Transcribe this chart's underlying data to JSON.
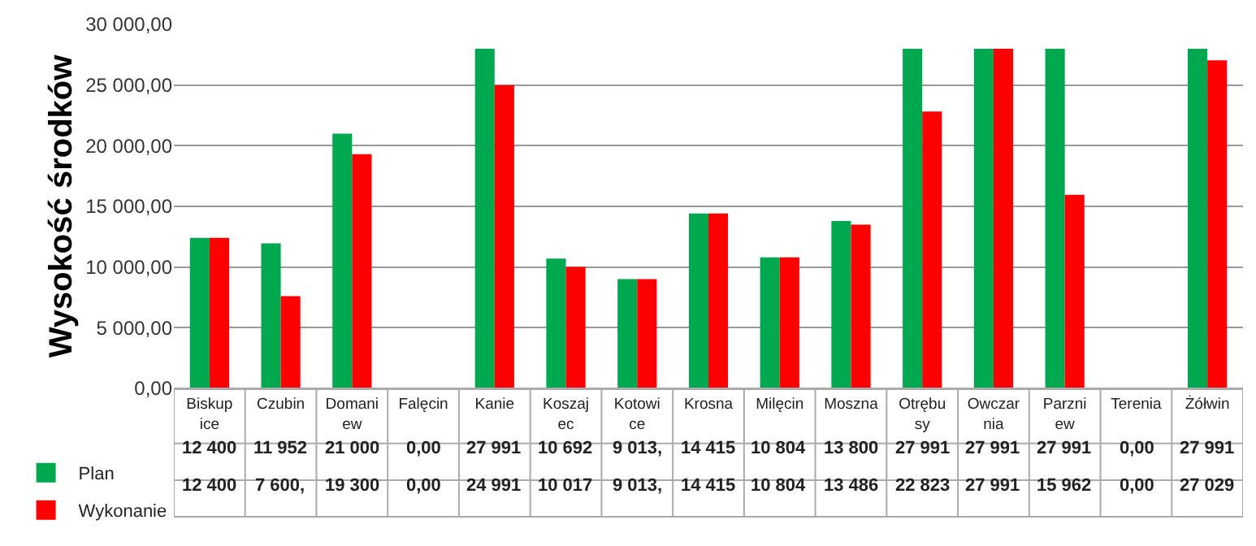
{
  "chart_data": {
    "type": "bar",
    "ylabel": "Wysokość środków",
    "categories": [
      "Biskupice",
      "Czubin",
      "Domaniew",
      "Falęcin",
      "Kanie",
      "Koszajec",
      "Kotowice",
      "Krosna",
      "Milęcin",
      "Moszna",
      "Otrębusy",
      "Owczarnia",
      "Parzniew",
      "Terenia",
      "Żółwin"
    ],
    "series": [
      {
        "name": "Plan",
        "color": "#00a94f",
        "values": [
          12400,
          11952,
          21000,
          0,
          27991,
          10692,
          9013,
          14415,
          10804,
          13800,
          27991,
          27991,
          27991,
          0,
          27991
        ],
        "value_labels": [
          "12 400",
          "11 952",
          "21 000",
          "0,00",
          "27 991",
          "10 692",
          "9 013,",
          "14 415",
          "10 804",
          "13 800",
          "27 991",
          "27 991",
          "27 991",
          "0,00",
          "27 991"
        ]
      },
      {
        "name": "Wykonanie",
        "color": "#ff0000",
        "values": [
          12400,
          7600,
          19300,
          0,
          24991,
          10017,
          9013,
          14415,
          10804,
          13486,
          22823,
          27991,
          15962,
          0,
          27029
        ],
        "value_labels": [
          "12 400",
          "7 600,",
          "19 300",
          "0,00",
          "24 991",
          "10 017",
          "9 013,",
          "14 415",
          "10 804",
          "13 486",
          "22 823",
          "27 991",
          "15 962",
          "0,00",
          "27 029"
        ]
      }
    ],
    "ylim": [
      0,
      30000
    ],
    "yticks": [
      {
        "value": 0,
        "label": "0,00"
      },
      {
        "value": 5000,
        "label": "5 000,00"
      },
      {
        "value": 10000,
        "label": "10 000,00"
      },
      {
        "value": 15000,
        "label": "15 000,00"
      },
      {
        "value": 20000,
        "label": "20 000,00"
      },
      {
        "value": 25000,
        "label": "25 000,00"
      },
      {
        "value": 30000,
        "label": "30 000,00"
      }
    ],
    "grid": "y",
    "legend": "bottom left"
  }
}
